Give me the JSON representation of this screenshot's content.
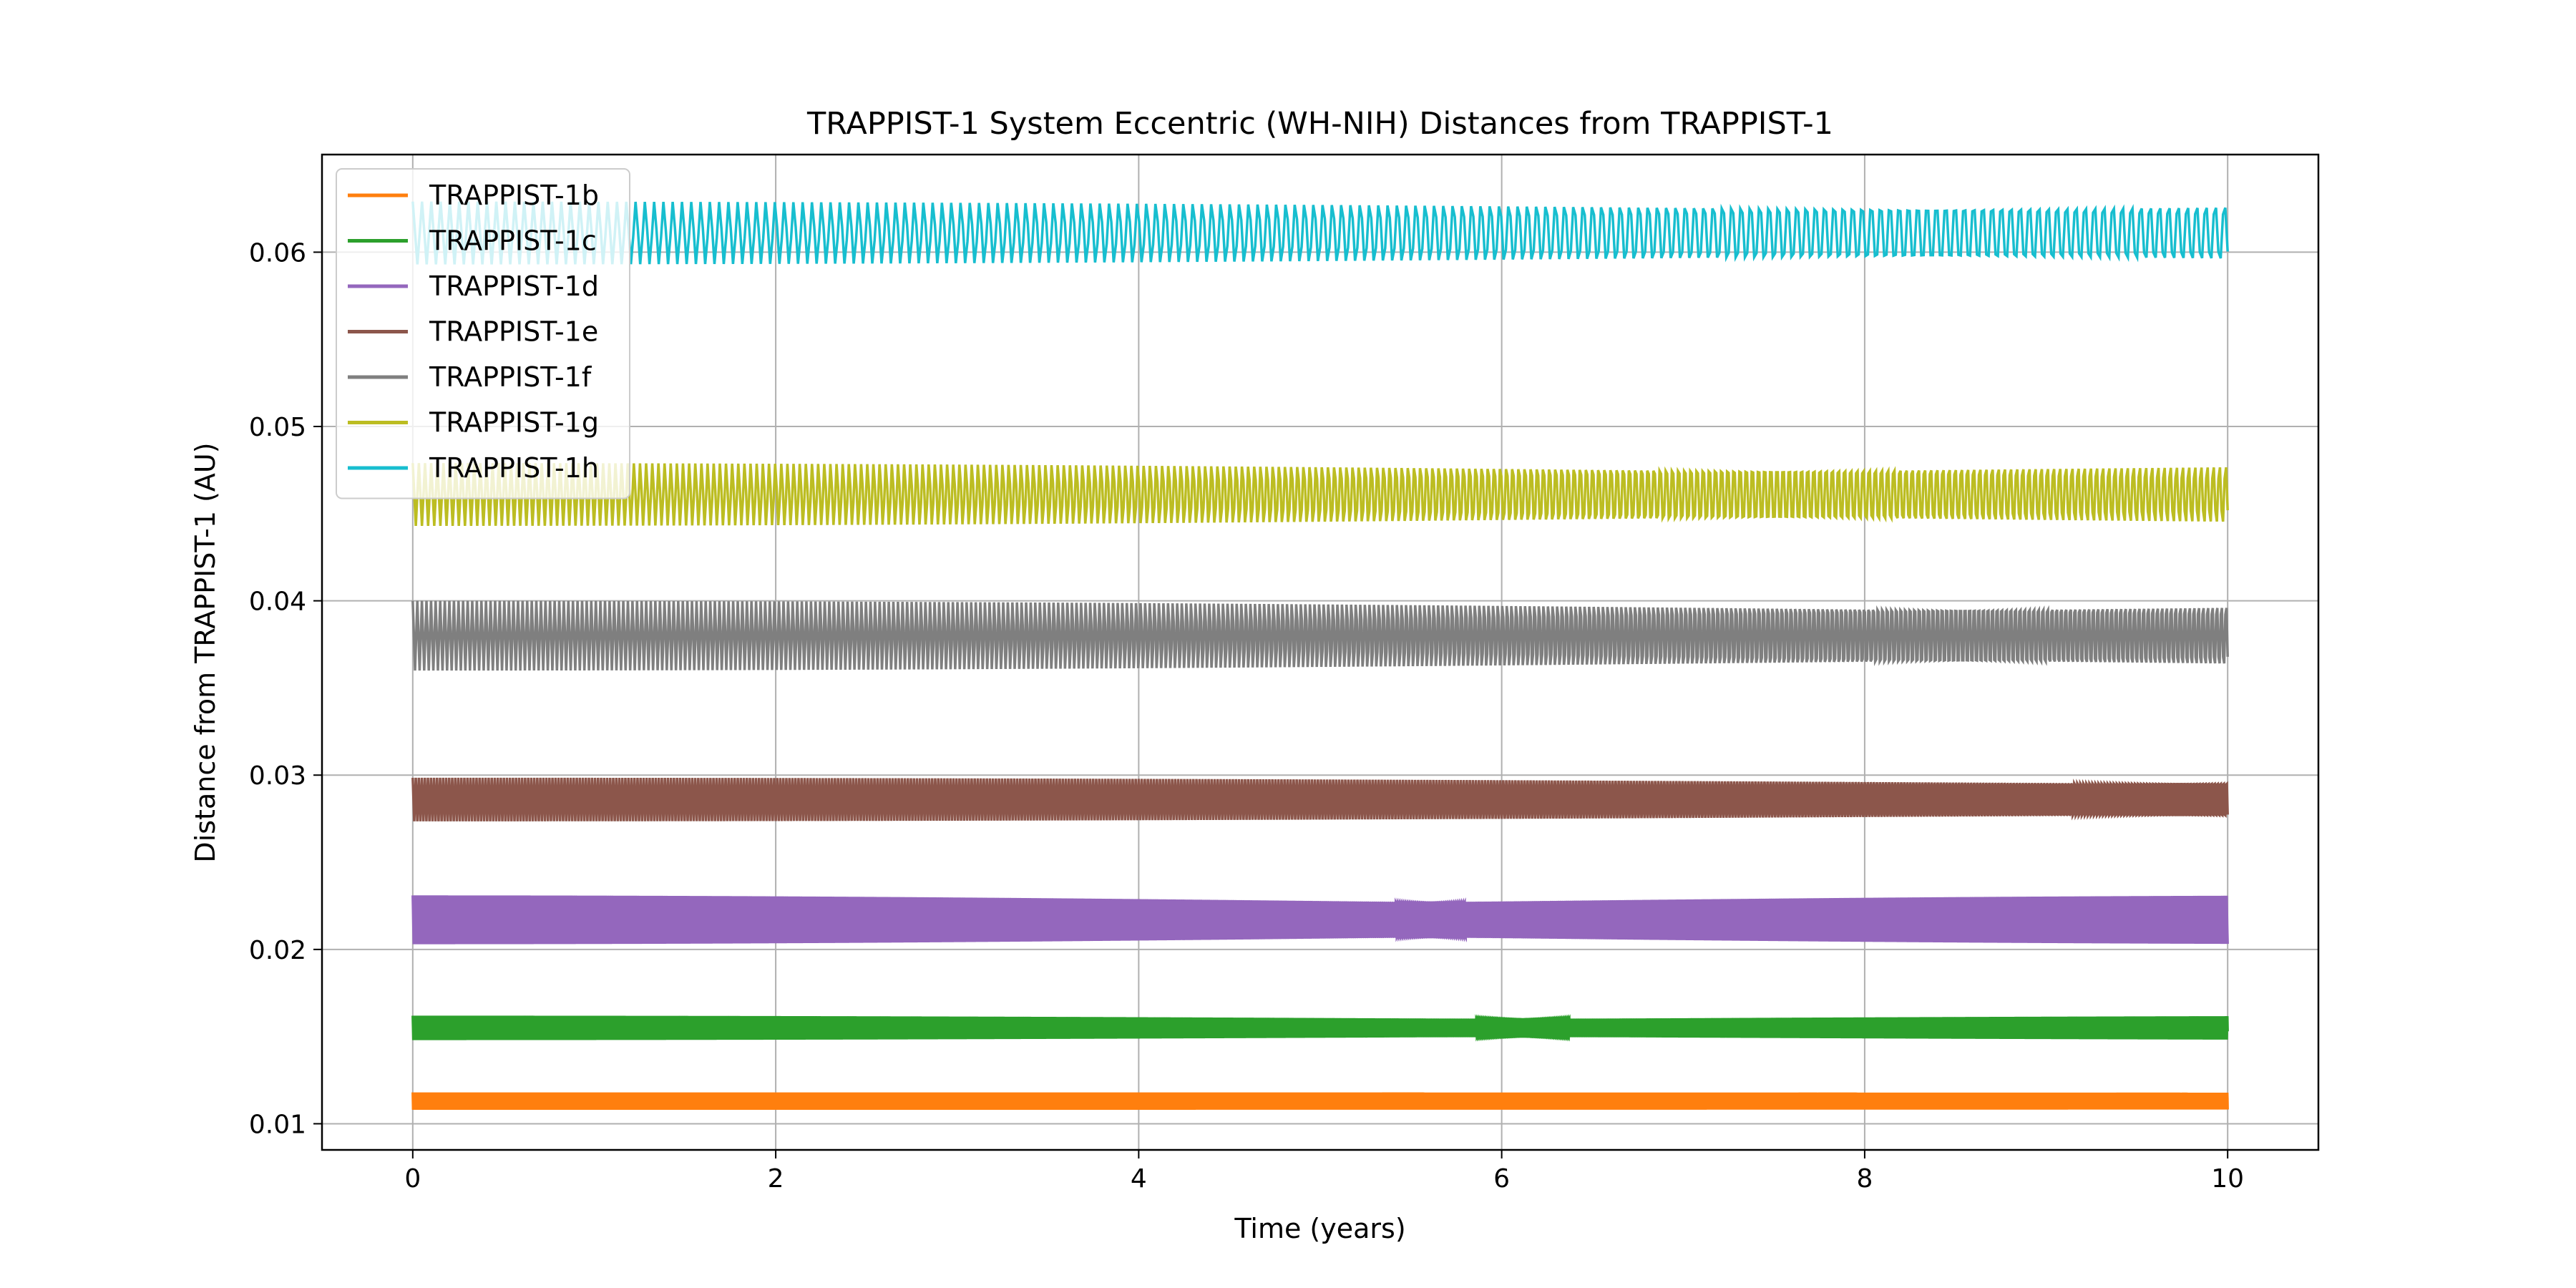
{
  "chart_data": {
    "type": "line",
    "title": "TRAPPIST-1 System Eccentric (WH-NIH) Distances from TRAPPIST-1",
    "xlabel": "Time (years)",
    "ylabel": "Distance from TRAPPIST-1 (AU)",
    "xlim": [
      -0.5,
      10.5
    ],
    "ylim": [
      0.0085,
      0.0656
    ],
    "xticks": [
      0,
      2,
      4,
      6,
      8,
      10
    ],
    "xtick_labels": [
      "0",
      "2",
      "4",
      "6",
      "8",
      "10"
    ],
    "yticks": [
      0.01,
      0.02,
      0.03,
      0.04,
      0.05,
      0.06
    ],
    "ytick_labels": [
      "0.01",
      "0.02",
      "0.03",
      "0.04",
      "0.05",
      "0.06"
    ],
    "grid": true,
    "legend_position": "top-left",
    "series": [
      {
        "name": "TRAPPIST-1b",
        "color": "#ff7f0e",
        "x_range": [
          0,
          10
        ],
        "min": 0.0108,
        "max": 0.0118,
        "mean": 0.0113,
        "period_years": 0.00414
      },
      {
        "name": "TRAPPIST-1c",
        "color": "#2ca02c",
        "x_range": [
          0,
          10
        ],
        "min": 0.0148,
        "max": 0.0162,
        "mean": 0.0155,
        "period_years": 0.00663
      },
      {
        "name": "TRAPPIST-1d",
        "color": "#9467bd",
        "x_range": [
          0,
          10
        ],
        "min": 0.0203,
        "max": 0.0231,
        "mean": 0.0217,
        "period_years": 0.01108
      },
      {
        "name": "TRAPPIST-1e",
        "color": "#8c564b",
        "x_range": [
          0,
          10
        ],
        "min": 0.0274,
        "max": 0.0299,
        "mean": 0.0286,
        "period_years": 0.01674
      },
      {
        "name": "TRAPPIST-1f",
        "color": "#7f7f7f",
        "x_range": [
          0,
          10
        ],
        "min": 0.036,
        "max": 0.04,
        "mean": 0.038,
        "period_years": 0.02523
      },
      {
        "name": "TRAPPIST-1g",
        "color": "#bcbd22",
        "x_range": [
          0,
          10
        ],
        "min": 0.0443,
        "max": 0.0479,
        "mean": 0.0461,
        "period_years": 0.03386
      },
      {
        "name": "TRAPPIST-1h",
        "color": "#17becf",
        "x_range": [
          0,
          10
        ],
        "min": 0.0593,
        "max": 0.0629,
        "mean": 0.0611,
        "period_years": 0.05119
      }
    ]
  }
}
